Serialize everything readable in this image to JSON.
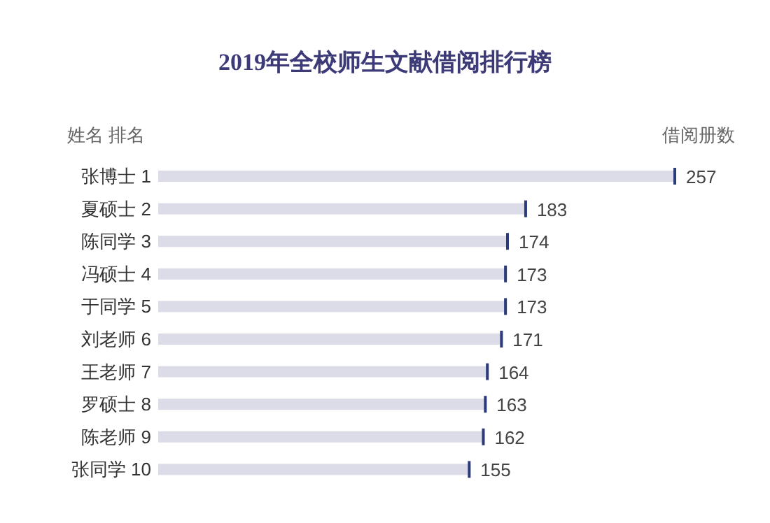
{
  "chart_data": {
    "type": "bar",
    "orientation": "horizontal",
    "title": "2019年全校师生文献借阅排行榜",
    "ylabel": "姓名 排名",
    "xlabel": "借阅册数",
    "categories": [
      "张博士 1",
      "夏硕士 2",
      "陈同学 3",
      "冯硕士 4",
      "于同学 5",
      "刘老师 6",
      "王老师 7",
      "罗硕士 8",
      "陈老师 9",
      "张同学 10"
    ],
    "values": [
      257,
      183,
      174,
      173,
      173,
      171,
      164,
      163,
      162,
      155
    ],
    "color": "#dcdce8",
    "data_labels": true
  }
}
